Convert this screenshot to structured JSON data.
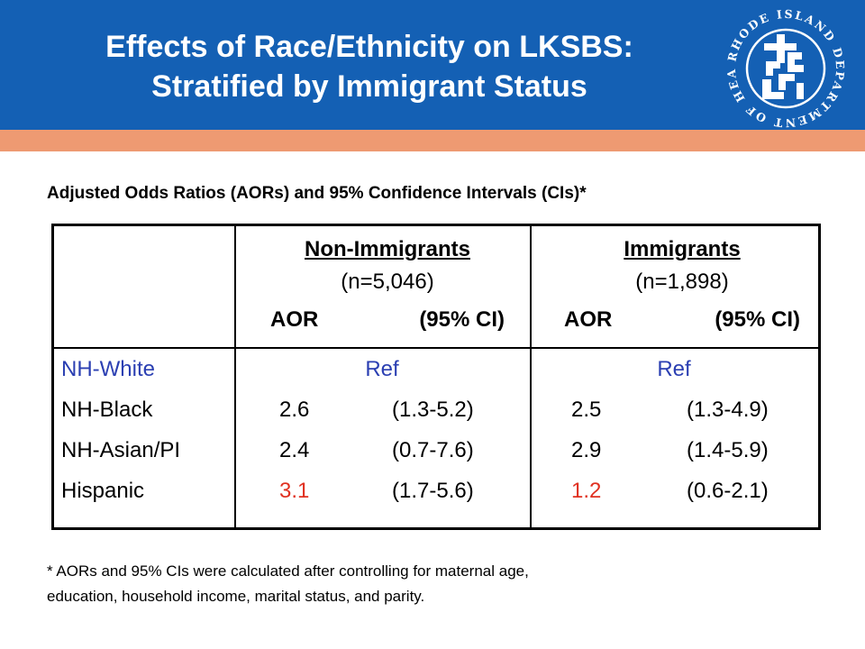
{
  "header": {
    "title_line1": "Effects of Race/Ethnicity on LKSBS:",
    "title_line2": "Stratified by Immigrant Status",
    "logo_text": "RHODE ISLAND DEPARTMENT OF HEALTH",
    "colors": {
      "header_bg": "#1460b4",
      "accent_bar": "#ee9a72"
    }
  },
  "subtitle": "Adjusted Odds Ratios (AORs) and 95% Confidence Intervals (CIs)*",
  "table": {
    "groups": [
      {
        "name": "Non-Immigrants",
        "n": "(n=5,046)",
        "aor_label": "AOR",
        "ci_label": "(95% CI)"
      },
      {
        "name": "Immigrants",
        "n": "(n=1,898)",
        "aor_label": "AOR",
        "ci_label": "(95% CI)"
      }
    ],
    "rows": [
      {
        "label": "NH-White",
        "ref": "Ref"
      },
      {
        "label": "NH-Black",
        "non_aor": "2.6",
        "non_ci": "(1.3-5.2)",
        "imm_aor": "2.5",
        "imm_ci": "(1.3-4.9)"
      },
      {
        "label": "NH-Asian/PI",
        "non_aor": "2.4",
        "non_ci": "(0.7-7.6)",
        "imm_aor": "2.9",
        "imm_ci": "(1.4-5.9)"
      },
      {
        "label": "Hispanic",
        "non_aor": "3.1",
        "non_ci": "(1.7-5.6)",
        "imm_aor": "1.2",
        "imm_ci": "(0.6-2.1)"
      }
    ],
    "colors": {
      "reference_text": "#2b3fb2",
      "highlight_text": "#e03020"
    }
  },
  "footnote": {
    "marker": "*",
    "line1": " AORs and 95% CIs were calculated after controlling for maternal age,",
    "line2": "education, household income, marital status, and parity."
  }
}
